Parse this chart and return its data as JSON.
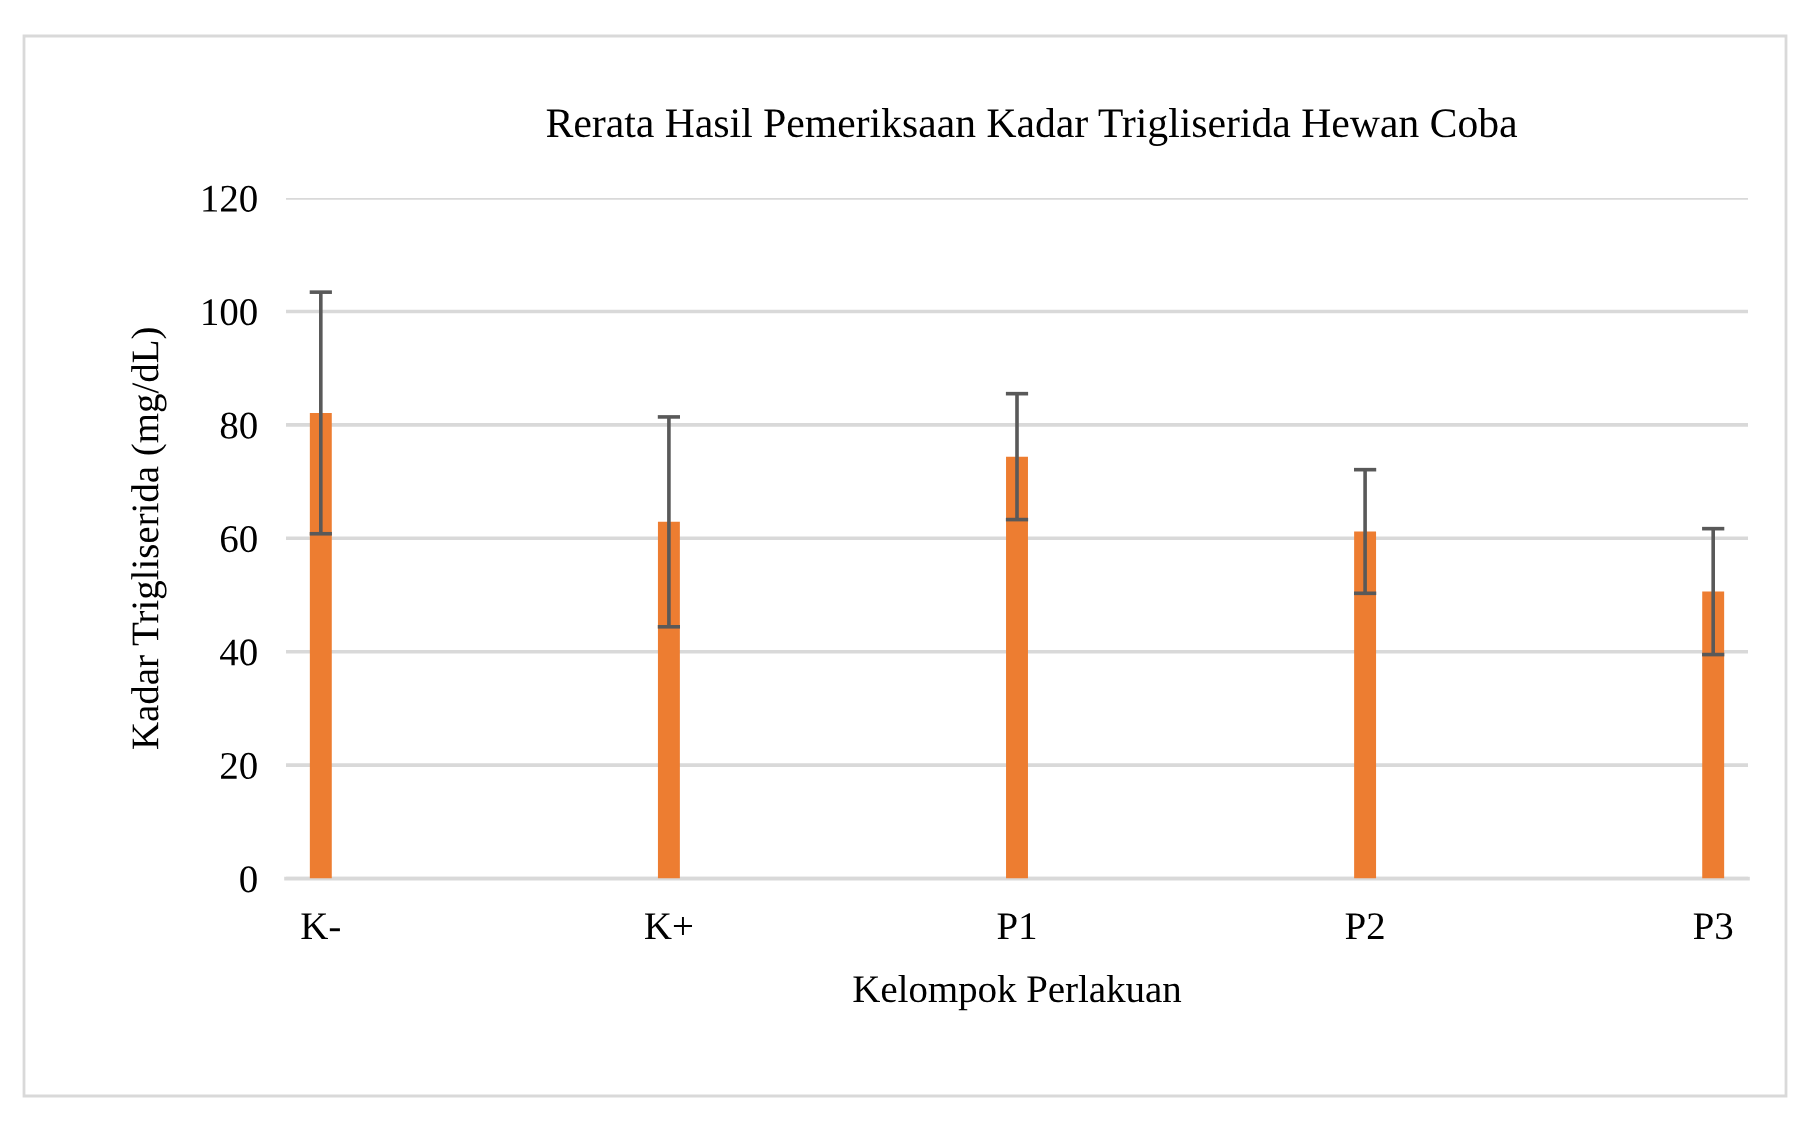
{
  "chart_data": {
    "type": "bar",
    "title": "Rerata Hasil Pemeriksaan Kadar Trigliserida Hewan Coba",
    "xlabel": "Kelompok Perlakuan",
    "ylabel": "Kadar Trigliserida (mg/dL)",
    "categories": [
      "K-",
      "K+",
      "P1",
      "P2",
      "P3"
    ],
    "values": [
      82.1,
      62.9,
      74.4,
      61.2,
      50.6
    ],
    "errors": [
      21.3,
      18.5,
      11.1,
      10.9,
      11.1
    ],
    "color": "#ed7d31",
    "ylim": [
      0,
      120
    ],
    "yticks": [
      0,
      20,
      40,
      60,
      80,
      100,
      120
    ],
    "grid": "y",
    "legend": false
  }
}
